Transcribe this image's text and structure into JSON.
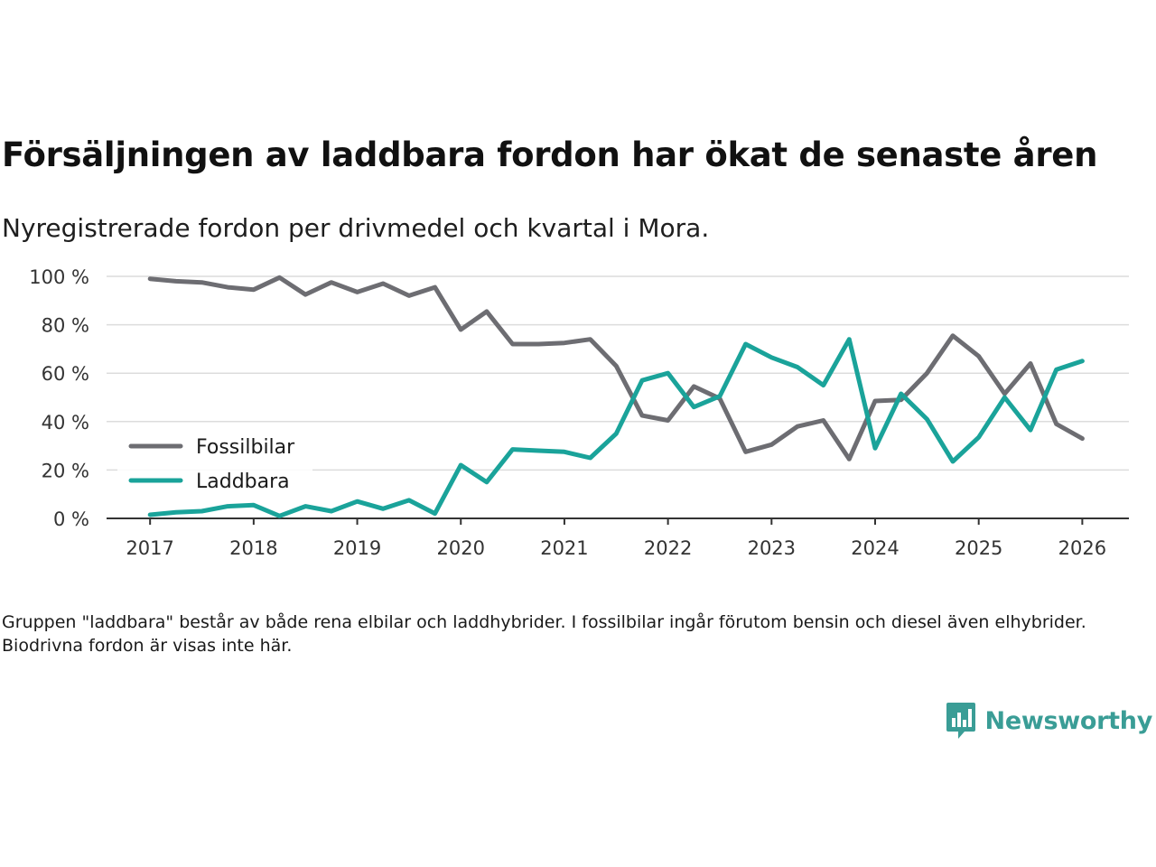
{
  "header": {
    "title": "Försäljningen av laddbara fordon har ökat de senaste åren",
    "subtitle": "Nyregistrerade fordon per drivmedel och kvartal i Mora."
  },
  "chart_data": {
    "type": "line",
    "title": "Försäljningen av laddbara fordon har ökat de senaste åren",
    "subtitle": "Nyregistrerade fordon per drivmedel och kvartal i Mora.",
    "xlabel": "",
    "ylabel": "",
    "x": [
      2017.0,
      2017.25,
      2017.5,
      2017.75,
      2018.0,
      2018.25,
      2018.5,
      2018.75,
      2019.0,
      2019.25,
      2019.5,
      2019.75,
      2020.0,
      2020.25,
      2020.5,
      2020.75,
      2021.0,
      2021.25,
      2021.5,
      2021.75,
      2022.0,
      2022.25,
      2022.5,
      2022.75,
      2023.0,
      2023.25,
      2023.5,
      2023.75,
      2024.0,
      2024.25,
      2024.5,
      2024.75,
      2025.0,
      2025.25,
      2025.5,
      2025.75,
      2026.0
    ],
    "xlim": [
      2016.58,
      2026.45
    ],
    "ylim": [
      0,
      100
    ],
    "x_ticks": [
      2017,
      2018,
      2019,
      2020,
      2021,
      2022,
      2023,
      2024,
      2025,
      2026
    ],
    "x_tick_labels": [
      "2017",
      "2018",
      "2019",
      "2020",
      "2021",
      "2022",
      "2023",
      "2024",
      "2025",
      "2026"
    ],
    "y_ticks": [
      0,
      20,
      40,
      60,
      80,
      100
    ],
    "y_tick_labels": [
      "0 %",
      "20 %",
      "40 %",
      "60 %",
      "80 %",
      "100 %"
    ],
    "grid": true,
    "legend_position": "left",
    "series": [
      {
        "name": "Fossilbilar",
        "color": "#6d6d72",
        "values": [
          99,
          98,
          97.5,
          95.5,
          94.5,
          99.5,
          92.5,
          97.5,
          93.5,
          97,
          92,
          95.5,
          78,
          85.5,
          72,
          72,
          72.5,
          74,
          63,
          42.5,
          40.5,
          54.5,
          49.5,
          27.5,
          30.5,
          38,
          40.5,
          24.5,
          48.5,
          49,
          60,
          75.5,
          67,
          51.5,
          64,
          39,
          33
        ]
      },
      {
        "name": "Laddbara",
        "color": "#1aa39a",
        "values": [
          1.5,
          2.5,
          3,
          5,
          5.5,
          1,
          5,
          3,
          7,
          4,
          7.5,
          2,
          22,
          15,
          28.5,
          28,
          27.5,
          25,
          35,
          57,
          60,
          46,
          50.5,
          72,
          66.5,
          62.5,
          55,
          74,
          29,
          51.5,
          41,
          23.5,
          33.5,
          50,
          36.5,
          61.5,
          65
        ]
      }
    ]
  },
  "footnote": "Gruppen \"laddbara\" består av både rena elbilar och laddhybrider. I fossilbilar ingår förutom bensin och diesel även elhybrider. Biodrivna fordon är visas inte här.",
  "branding": {
    "name": "Newsworthy",
    "icon": "newsworthy-logo-icon",
    "color": "#3a9d96"
  }
}
